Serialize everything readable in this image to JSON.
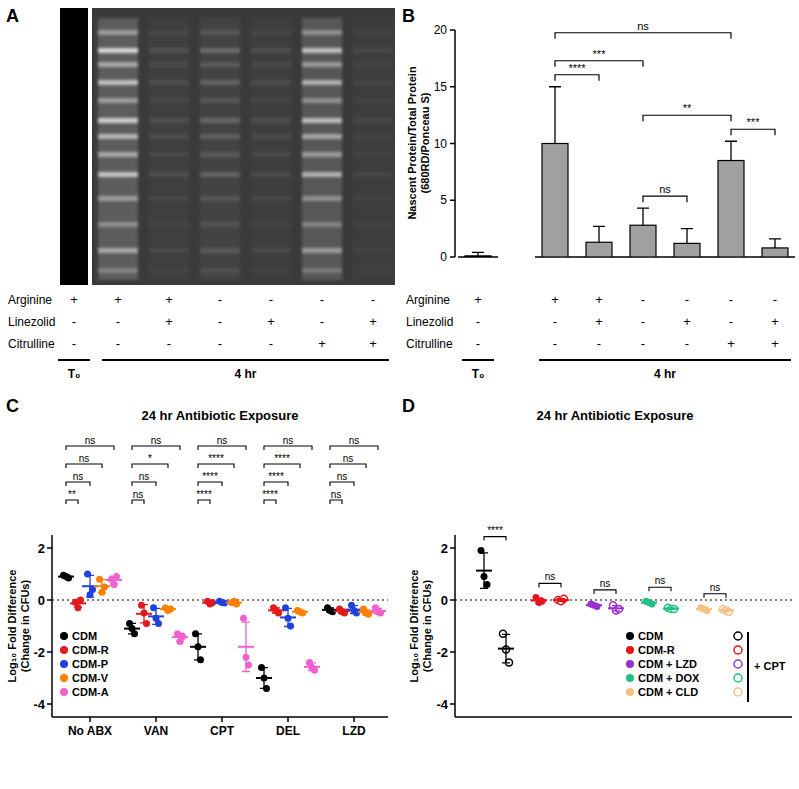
{
  "panel_labels": [
    "A",
    "B",
    "C",
    "D"
  ],
  "blot": {
    "treatments": [
      {
        "label": "Arginine",
        "values": [
          "+",
          "+",
          "+",
          "-",
          "-",
          "-",
          "-"
        ]
      },
      {
        "label": "Linezolid",
        "values": [
          "-",
          "-",
          "+",
          "-",
          "+",
          "-",
          "+"
        ]
      },
      {
        "label": "Citrulline",
        "values": [
          "-",
          "-",
          "-",
          "-",
          "-",
          "+",
          "+"
        ]
      }
    ],
    "groups": [
      {
        "label": "T₀",
        "size": 1
      },
      {
        "label": "4 hr",
        "size": 6
      }
    ]
  },
  "chart_data": [
    {
      "type": "bar",
      "categories": [
        null,
        null,
        null,
        null,
        null,
        null,
        null
      ],
      "values": [
        0.1,
        10.0,
        1.3,
        2.8,
        1.2,
        8.5,
        0.8
      ],
      "errors": [
        0.3,
        5.0,
        1.4,
        1.5,
        1.3,
        1.7,
        0.8
      ],
      "color": "#a0a0a0",
      "y_label": [
        "Nascent Protein/Total Protein",
        "(680RD/Ponceau S)"
      ],
      "ylim": [
        0,
        20
      ],
      "yticks": [
        0,
        5,
        10,
        15,
        20
      ],
      "tick_labels": "y",
      "treatments": [
        {
          "label": "Arginine",
          "values": [
            "+",
            "+",
            "+",
            "-",
            "-",
            "-",
            "-"
          ]
        },
        {
          "label": "Linezolid",
          "values": [
            "-",
            "-",
            "+",
            "-",
            "+",
            "-",
            "+"
          ]
        },
        {
          "label": "Citrulline",
          "values": [
            "-",
            "-",
            "-",
            "-",
            "-",
            "+",
            "+"
          ]
        }
      ],
      "groups": [
        {
          "label": "T₀",
          "size": 1
        },
        {
          "label": "4 hr",
          "size": 6
        }
      ],
      "comparisons": [
        {
          "from": 1,
          "to": 5,
          "label": "ns"
        },
        {
          "from": 1,
          "to": 3,
          "label": "***"
        },
        {
          "from": 3,
          "to": 5,
          "label": "**"
        },
        {
          "from": 1,
          "to": 2,
          "label": "****"
        },
        {
          "from": 3,
          "to": 4,
          "label": "ns"
        },
        {
          "from": 5,
          "to": 6,
          "label": "***"
        }
      ]
    },
    {
      "type": "scatter",
      "title": "24 hr Antibiotic Exposure",
      "categories": [
        "No ABX",
        "VAN",
        "CPT",
        "DEL",
        "LZD"
      ],
      "y_label": [
        "Log₁₀ Fold Difference",
        "(Change in CFUs)"
      ],
      "ylim": [
        -4.5,
        2.5
      ],
      "yticks": [
        -4,
        -2,
        0,
        2
      ],
      "reference_line": 0,
      "marker": "circle",
      "legend": "lower left",
      "series": [
        {
          "name": "CDM",
          "color": "#000000",
          "values": [
            [
              0.95,
              0.9,
              0.85
            ],
            [
              -0.9,
              -1.1,
              -1.3
            ],
            [
              -1.3,
              -1.8,
              -2.3
            ],
            [
              -2.6,
              -3.0,
              -3.4
            ],
            [
              -0.3,
              -0.4,
              -0.45
            ]
          ],
          "means": [
            0.9,
            -1.1,
            -1.8,
            -3.0,
            -0.38
          ],
          "errors": [
            0.05,
            0.2,
            0.5,
            0.4,
            0.08
          ]
        },
        {
          "name": "CDM-R",
          "color": "#e41a1c",
          "values": [
            [
              -0.1,
              -0.3,
              0.0
            ],
            [
              -0.2,
              -0.5,
              -0.9
            ],
            [
              -0.05,
              -0.15,
              -0.1
            ],
            [
              -0.3,
              -0.4,
              -0.5
            ],
            [
              -0.35,
              -0.45,
              -0.5
            ]
          ],
          "means": [
            -0.13,
            -0.53,
            -0.1,
            -0.4,
            -0.43
          ],
          "errors": [
            0.15,
            0.35,
            0.05,
            0.1,
            0.08
          ]
        },
        {
          "name": "CDM-P",
          "color": "#2040e0",
          "values": [
            [
              1.0,
              0.2,
              0.4
            ],
            [
              -0.3,
              -0.7,
              -0.9
            ],
            [
              -0.05,
              -0.1,
              -0.12
            ],
            [
              -0.3,
              -0.7,
              -1.0
            ],
            [
              -0.2,
              -0.4,
              -0.5
            ]
          ],
          "means": [
            0.53,
            -0.63,
            -0.09,
            -0.67,
            -0.37
          ],
          "errors": [
            0.42,
            0.31,
            0.04,
            0.35,
            0.15
          ]
        },
        {
          "name": "CDM-V",
          "color": "#ff8000",
          "values": [
            [
              0.8,
              0.3,
              0.5
            ],
            [
              -0.3,
              -0.4,
              -0.35
            ],
            [
              -0.1,
              -0.05,
              -0.15
            ],
            [
              -0.4,
              -0.45,
              -0.5
            ],
            [
              -0.35,
              -0.5,
              -0.55
            ]
          ],
          "means": [
            0.53,
            -0.35,
            -0.1,
            -0.45,
            -0.47
          ],
          "errors": [
            0.25,
            0.05,
            0.05,
            0.05,
            0.1
          ]
        },
        {
          "name": "CDM-A",
          "color": "#f060d0",
          "values": [
            [
              0.8,
              0.6,
              0.9
            ],
            [
              -1.3,
              -1.6,
              -1.4
            ],
            [
              -0.7,
              -2.2,
              -2.5
            ],
            [
              -2.4,
              -2.6,
              -2.7
            ],
            [
              -0.3,
              -0.45,
              -0.5
            ]
          ],
          "means": [
            0.77,
            -1.43,
            -1.8,
            -2.57,
            -0.42
          ],
          "errors": [
            0.15,
            0.15,
            0.95,
            0.15,
            0.1
          ]
        }
      ],
      "significance": [
        [
          "**",
          "ns",
          "ns",
          "ns"
        ],
        [
          "ns",
          "ns",
          "*",
          "ns"
        ],
        [
          "****",
          "****",
          "****",
          "ns"
        ],
        [
          "****",
          "****",
          "****",
          "ns"
        ],
        [
          "ns",
          "ns",
          "ns",
          "ns"
        ]
      ]
    },
    {
      "type": "scatter",
      "title": "24 hr Antibiotic Exposure",
      "y_label": [
        "Log₁₀ Fold Difference",
        "(Change in CFUs)"
      ],
      "ylim": [
        -4.5,
        2.5
      ],
      "yticks": [
        -4,
        -2,
        0,
        2
      ],
      "reference_line": 0,
      "marker": "circle",
      "legend": "lower right",
      "tick_labels": "y",
      "cpt_label": "+ CPT",
      "series": [
        {
          "name": "CDM",
          "color": "#000000",
          "values": [
            1.9,
            0.9,
            0.6
          ],
          "mean": 1.13,
          "error": 0.68,
          "cpt_values": [
            -1.3,
            -1.9,
            -2.4
          ],
          "cpt_mean": -1.87,
          "cpt_error": 0.55
        },
        {
          "name": "CDM-R",
          "color": "#e8141b",
          "values": [
            0.1,
            -0.1,
            -0.05
          ],
          "mean": -0.02,
          "error": 0.1,
          "cpt_values": [
            0.0,
            -0.05,
            0.05
          ],
          "cpt_mean": 0.0,
          "cpt_error": 0.05
        },
        {
          "name": "CDM + LZD",
          "color": "#9b30d0",
          "values": [
            -0.15,
            -0.2,
            -0.25
          ],
          "mean": -0.2,
          "error": 0.05,
          "cpt_values": [
            -0.2,
            -0.4,
            -0.35
          ],
          "cpt_mean": -0.32,
          "cpt_error": 0.1
        },
        {
          "name": "CDM + DOX",
          "color": "#20c080",
          "values": [
            -0.05,
            -0.1,
            -0.15
          ],
          "mean": -0.1,
          "error": 0.05,
          "cpt_values": [
            -0.3,
            -0.35,
            -0.35
          ],
          "cpt_mean": -0.33,
          "cpt_error": 0.03
        },
        {
          "name": "CDM + CLD",
          "color": "#f5c080",
          "values": [
            -0.3,
            -0.35,
            -0.4
          ],
          "mean": -0.35,
          "error": 0.05,
          "cpt_values": [
            -0.35,
            -0.4,
            -0.45
          ],
          "cpt_mean": -0.4,
          "cpt_error": 0.05
        }
      ],
      "significance": [
        "****",
        "ns",
        "ns",
        "ns",
        "ns"
      ]
    }
  ]
}
